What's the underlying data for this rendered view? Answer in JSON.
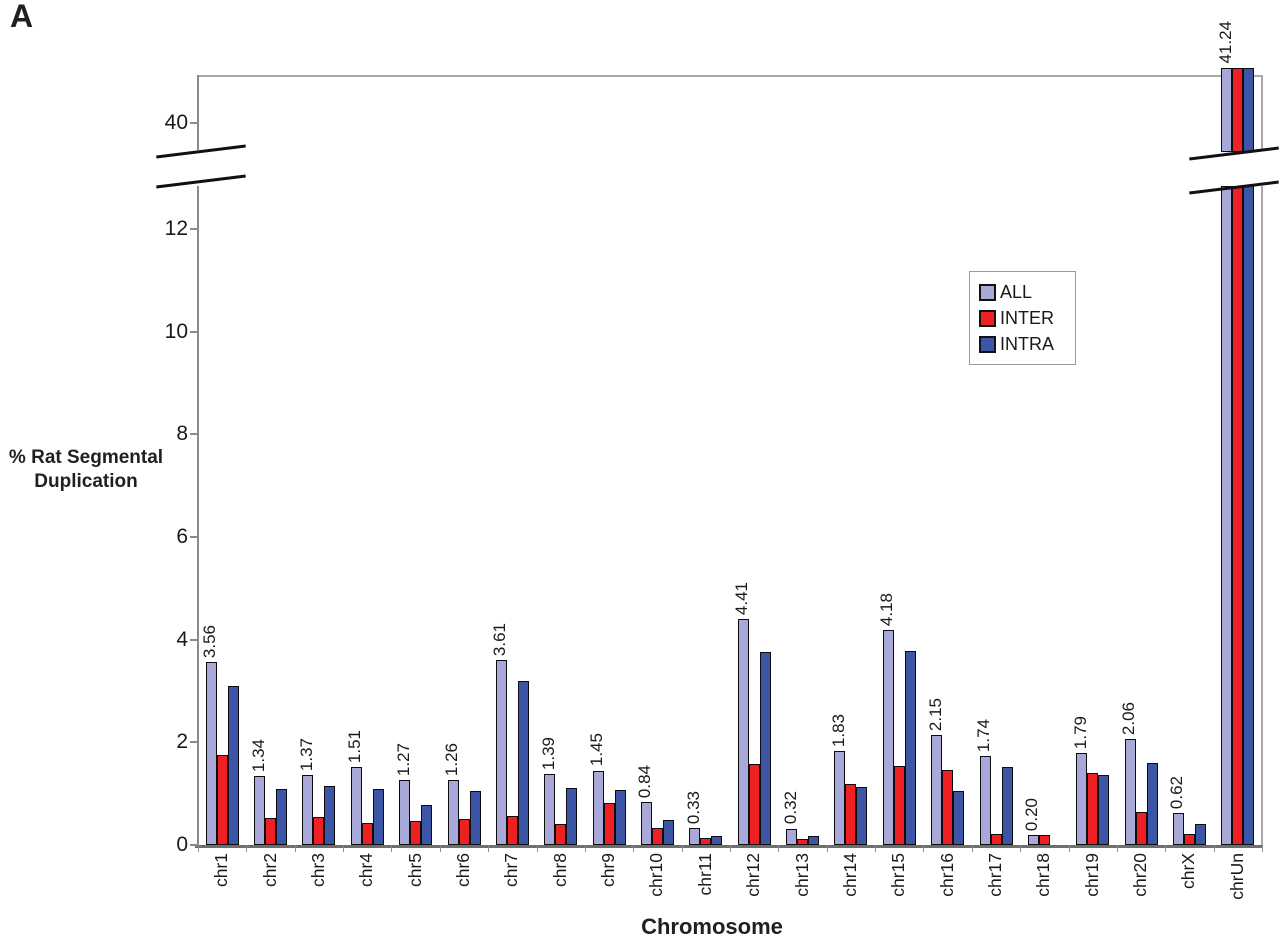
{
  "chart_data": {
    "type": "bar",
    "panel_label": "A",
    "title": "",
    "xlabel": "Chromosome",
    "ylabel": "% Rat Segmental Duplication",
    "categories": [
      "chr1",
      "chr2",
      "chr3",
      "chr4",
      "chr5",
      "chr6",
      "chr7",
      "chr8",
      "chr9",
      "chr10",
      "chr11",
      "chr12",
      "chr13",
      "chr14",
      "chr15",
      "chr16",
      "chr17",
      "chr18",
      "chr19",
      "chr20",
      "chrX",
      "chrUn"
    ],
    "series": [
      {
        "name": "ALL",
        "color": "#a8a9d8",
        "values": [
          3.56,
          1.34,
          1.37,
          1.51,
          1.27,
          1.26,
          3.61,
          1.39,
          1.45,
          0.84,
          0.33,
          4.41,
          0.32,
          1.83,
          4.18,
          2.15,
          1.74,
          0.2,
          1.79,
          2.06,
          0.62,
          41.24
        ],
        "labels": [
          "3.56",
          "1.34",
          "1.37",
          "1.51",
          "1.27",
          "1.26",
          "3.61",
          "1.39",
          "1.45",
          "0.84",
          "0.33",
          "4.41",
          "0.32",
          "1.83",
          "4.18",
          "2.15",
          "1.74",
          "0.20",
          "1.79",
          "2.06",
          "0.62",
          "41.24"
        ]
      },
      {
        "name": "INTER",
        "color": "#ee2024",
        "values": [
          1.76,
          0.52,
          0.55,
          0.43,
          0.46,
          0.5,
          0.57,
          0.41,
          0.82,
          0.33,
          0.14,
          1.58,
          0.11,
          1.18,
          1.53,
          1.47,
          0.21,
          0.2,
          1.4,
          0.64,
          0.22,
          null
        ]
      },
      {
        "name": "INTRA",
        "color": "#3c55a6",
        "values": [
          3.1,
          1.1,
          1.15,
          1.1,
          0.78,
          1.06,
          3.2,
          1.12,
          1.08,
          0.49,
          0.17,
          3.76,
          0.17,
          1.13,
          3.78,
          1.05,
          1.52,
          0,
          1.37,
          1.6,
          0.4,
          null
        ]
      }
    ],
    "bar_labels_on_series": "ALL",
    "y_axis": {
      "lower_ticks": [
        0,
        2,
        4,
        6,
        8,
        10,
        12
      ],
      "upper_tick": 40,
      "axis_break": true
    },
    "grid": "off",
    "legend_position": "inside-upper-right",
    "notes": "chrUn bars (ALL, INTER, INTRA) extend through the axis break; only the ALL value 41.24 is labeled. INTER/INTRA chrUn values are off-scale (null = drawn beyond break)."
  }
}
